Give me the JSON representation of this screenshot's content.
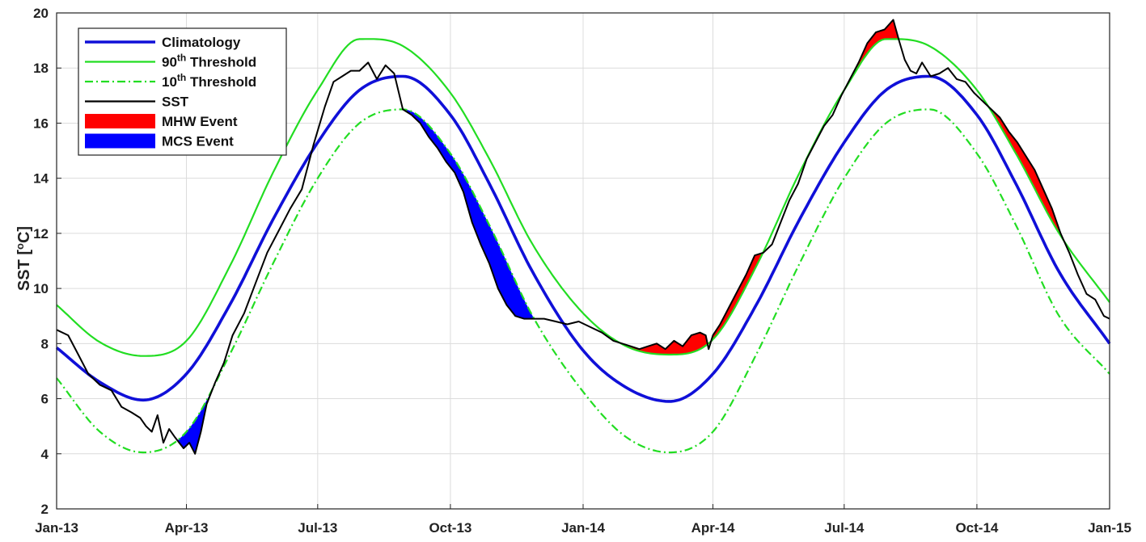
{
  "chart_data": {
    "type": "line",
    "ylabel": "SST [°C]",
    "ylabel_prefix": "SST [",
    "ylabel_sup": "o",
    "ylabel_suffix": "C]",
    "ylim": [
      2,
      20
    ],
    "yticks": [
      2,
      4,
      6,
      8,
      10,
      12,
      14,
      16,
      18,
      20
    ],
    "xlim_days": [
      0,
      730
    ],
    "x_ticks": [
      {
        "label": "Jan-13",
        "day": 0
      },
      {
        "label": "Apr-13",
        "day": 90
      },
      {
        "label": "Jul-13",
        "day": 181
      },
      {
        "label": "Oct-13",
        "day": 273
      },
      {
        "label": "Jan-14",
        "day": 365
      },
      {
        "label": "Apr-14",
        "day": 455
      },
      {
        "label": "Jul-14",
        "day": 546
      },
      {
        "label": "Oct-14",
        "day": 638
      },
      {
        "label": "Jan-15",
        "day": 730
      }
    ],
    "grid": true,
    "legend_position": "top-left",
    "legend": [
      {
        "key": "climatology",
        "label": "Climatology",
        "color": "#1010d8"
      },
      {
        "key": "p90",
        "label_pre": "90",
        "label_sup": "th",
        "label_post": " Threshold",
        "color": "#22dd22"
      },
      {
        "key": "p10",
        "label_pre": "10",
        "label_sup": "th",
        "label_post": " Threshold",
        "color": "#22dd22"
      },
      {
        "key": "sst",
        "label": "SST",
        "color": "#000000"
      },
      {
        "key": "mhw",
        "label": "MHW Event",
        "color": "#ff0000"
      },
      {
        "key": "mcs",
        "label": "MCS Event",
        "color": "#0000ff"
      }
    ],
    "series": [
      {
        "key": "climatology",
        "style": "solid",
        "x": [
          0,
          30,
          60,
          90,
          120,
          150,
          181,
          210,
          240,
          273,
          300,
          330,
          365,
          395,
          425,
          455,
          485,
          515,
          546,
          575,
          605,
          638,
          665,
          695,
          730
        ],
        "y": [
          7.85,
          6.6,
          5.95,
          6.9,
          9.4,
          12.5,
          15.3,
          17.2,
          17.7,
          16.3,
          13.8,
          10.6,
          7.75,
          6.4,
          5.9,
          6.9,
          9.4,
          12.5,
          15.3,
          17.2,
          17.7,
          16.3,
          13.8,
          10.6,
          8.0
        ]
      },
      {
        "key": "p90",
        "style": "solid",
        "x": [
          0,
          30,
          60,
          90,
          120,
          150,
          181,
          210,
          240,
          273,
          300,
          330,
          365,
          395,
          425,
          455,
          485,
          515,
          546,
          575,
          605,
          638,
          665,
          695,
          730
        ],
        "y": [
          9.4,
          8.05,
          7.55,
          8.1,
          10.8,
          14.2,
          17.2,
          19.05,
          18.8,
          17.1,
          14.7,
          11.6,
          9.1,
          7.9,
          7.6,
          8.15,
          10.8,
          14.2,
          17.2,
          19.05,
          18.8,
          17.2,
          14.9,
          12.0,
          9.5
        ]
      },
      {
        "key": "p10",
        "style": "dashdot",
        "x": [
          0,
          30,
          60,
          90,
          120,
          150,
          181,
          210,
          240,
          273,
          300,
          330,
          365,
          395,
          425,
          455,
          485,
          515,
          546,
          575,
          605,
          638,
          665,
          695,
          730
        ],
        "y": [
          6.75,
          4.8,
          4.05,
          4.8,
          7.6,
          10.9,
          14.0,
          16.0,
          16.5,
          14.9,
          12.3,
          9.0,
          6.25,
          4.6,
          4.05,
          4.8,
          7.6,
          10.9,
          14.0,
          16.0,
          16.5,
          14.9,
          12.3,
          9.0,
          6.9
        ]
      },
      {
        "key": "sst",
        "style": "solid",
        "x": [
          0,
          8,
          15,
          22,
          30,
          38,
          45,
          52,
          58,
          62,
          66,
          70,
          74,
          78,
          82,
          85,
          88,
          92,
          96,
          100,
          104,
          110,
          116,
          122,
          130,
          138,
          146,
          154,
          162,
          170,
          178,
          186,
          192,
          198,
          204,
          210,
          216,
          222,
          228,
          234,
          240,
          246,
          252,
          258,
          264,
          270,
          276,
          282,
          288,
          294,
          300,
          306,
          312,
          318,
          324,
          330,
          338,
          346,
          354,
          362,
          370,
          378,
          386,
          392,
          398,
          404,
          410,
          416,
          422,
          428,
          434,
          440,
          446,
          450,
          452,
          455,
          460,
          466,
          472,
          478,
          484,
          490,
          496,
          502,
          508,
          514,
          520,
          526,
          532,
          538,
          544,
          550,
          556,
          562,
          568,
          574,
          580,
          584,
          588,
          592,
          596,
          600,
          606,
          612,
          618,
          624,
          630,
          636,
          642,
          648,
          654,
          660,
          666,
          672,
          678,
          684,
          690,
          696,
          702,
          708,
          714,
          720,
          726,
          730
        ],
        "y": [
          8.5,
          8.3,
          7.6,
          6.9,
          6.5,
          6.3,
          5.7,
          5.5,
          5.3,
          5.0,
          4.8,
          5.4,
          4.4,
          4.9,
          4.6,
          4.4,
          4.2,
          4.4,
          4.0,
          4.8,
          5.8,
          6.6,
          7.3,
          8.3,
          9.1,
          10.2,
          11.3,
          12.1,
          12.9,
          13.6,
          15.2,
          16.6,
          17.5,
          17.7,
          17.9,
          17.9,
          18.2,
          17.6,
          18.1,
          17.8,
          16.5,
          16.3,
          16.0,
          15.5,
          15.1,
          14.6,
          14.2,
          13.5,
          12.4,
          11.6,
          10.9,
          10.0,
          9.4,
          9.0,
          8.9,
          8.9,
          8.9,
          8.8,
          8.7,
          8.8,
          8.6,
          8.4,
          8.1,
          8.0,
          7.9,
          7.8,
          7.9,
          8.0,
          7.8,
          8.1,
          7.9,
          8.3,
          8.4,
          8.3,
          7.8,
          8.3,
          8.7,
          9.3,
          9.9,
          10.5,
          11.2,
          11.3,
          11.6,
          12.4,
          13.2,
          13.8,
          14.7,
          15.3,
          15.9,
          16.3,
          17.0,
          17.6,
          18.2,
          18.9,
          19.3,
          19.4,
          19.75,
          19.0,
          18.3,
          17.9,
          17.8,
          18.2,
          17.7,
          17.8,
          18.0,
          17.6,
          17.5,
          17.1,
          16.8,
          16.5,
          16.2,
          15.7,
          15.3,
          14.8,
          14.3,
          13.6,
          12.9,
          12.0,
          11.3,
          10.5,
          9.8,
          9.6,
          9.0,
          8.9
        ]
      }
    ]
  }
}
